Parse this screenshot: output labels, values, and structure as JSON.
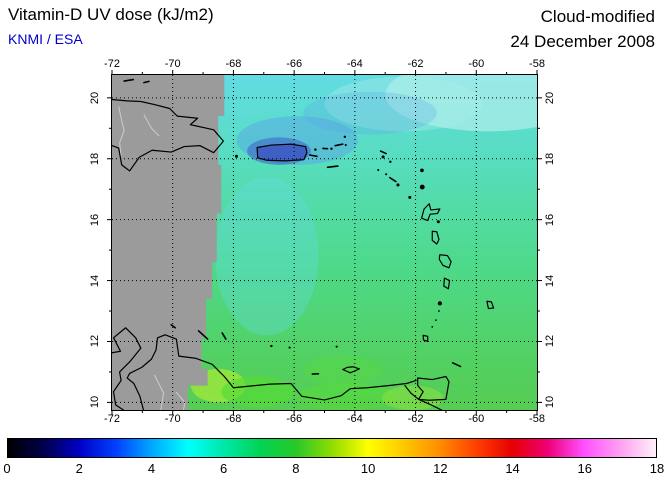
{
  "header": {
    "title": "Vitamin-D UV dose (kJ/m2)",
    "source": "KNMI / ESA",
    "mode": "Cloud-modified",
    "date": "24 December 2008"
  },
  "axes": {
    "lon_labels": [
      "-72",
      "-70",
      "-68",
      "-66",
      "-64",
      "-62",
      "-60",
      "-58"
    ],
    "lat_labels": [
      "20",
      "18",
      "16",
      "14",
      "12",
      "10"
    ]
  },
  "colorbar": {
    "unit_min": 0,
    "unit_max": 18,
    "tick_labels": [
      "0",
      "2",
      "4",
      "6",
      "8",
      "10",
      "12",
      "14",
      "16",
      "18"
    ],
    "stops": [
      {
        "v": 0,
        "c": "#000000"
      },
      {
        "v": 1,
        "c": "#00004D"
      },
      {
        "v": 2,
        "c": "#0000C8"
      },
      {
        "v": 3,
        "c": "#0040FF"
      },
      {
        "v": 4,
        "c": "#00A8FF"
      },
      {
        "v": 5,
        "c": "#00FFFF"
      },
      {
        "v": 6,
        "c": "#00E8A8"
      },
      {
        "v": 7,
        "c": "#00D455"
      },
      {
        "v": 8,
        "c": "#28C828"
      },
      {
        "v": 9,
        "c": "#90DC00"
      },
      {
        "v": 10,
        "c": "#FFFF00"
      },
      {
        "v": 11,
        "c": "#FFC800"
      },
      {
        "v": 12,
        "c": "#FF8C00"
      },
      {
        "v": 13,
        "c": "#FF4000"
      },
      {
        "v": 14,
        "c": "#E60000"
      },
      {
        "v": 15,
        "c": "#EE0078"
      },
      {
        "v": 16,
        "c": "#FF50FF"
      },
      {
        "v": 17,
        "c": "#FFA0F0"
      },
      {
        "v": 18,
        "c": "#FFF0FA"
      }
    ]
  },
  "colors": {
    "source_text": "#0000CC",
    "nodata_gray": "#9B9B9B",
    "sea_top": "#63DBE6",
    "sea_mid1": "#57DDC0",
    "sea_mid2": "#4EDA8C",
    "sea_low": "#52D060",
    "sea_bottom": "#58CC52",
    "corner_light": "#ABEEE8",
    "cloud_blue": "#58A0E8",
    "cloud_blue_deep": "#3E5FC4",
    "patch_yellow_green": "#9AE63C",
    "patch_bright_green": "#55DC38",
    "coast": "#000000",
    "border_light": "#CCCCCC",
    "grid": "#000000",
    "frame": "#000000"
  },
  "chart_data": {
    "type": "heatmap",
    "title": "Vitamin-D UV dose (kJ/m2)",
    "variant": "Cloud-modified",
    "date": "24 December 2008",
    "source": "KNMI / ESA",
    "region": {
      "lon_range": [
        -72,
        -58
      ],
      "lat_range": [
        10,
        20
      ]
    },
    "x_ticks": [
      -72,
      -70,
      -68,
      -66,
      -64,
      -62,
      -60,
      -58
    ],
    "y_ticks": [
      20,
      18,
      16,
      14,
      12,
      10
    ],
    "scale": {
      "min": 0,
      "max": 18,
      "step": 2,
      "units": "kJ/m2"
    },
    "no_data_region": "west of approx. -68.5 deg longitude shown gray (no satellite data)",
    "approx_dose_by_area": [
      {
        "area": "north (lat 18-20)",
        "value_kJ_m2": 5
      },
      {
        "area": "north-east corner (pale cyan)",
        "value_kJ_m2": 4.5
      },
      {
        "area": "Puerto Rico cloud patch (blue)",
        "value_kJ_m2": 3.5
      },
      {
        "area": "central (lat 13-17)",
        "value_kJ_m2": 6.5
      },
      {
        "area": "south (lat 10-12)",
        "value_kJ_m2": 7.5
      },
      {
        "area": "Venezuelan coast bright patches",
        "value_kJ_m2": 9
      }
    ]
  }
}
